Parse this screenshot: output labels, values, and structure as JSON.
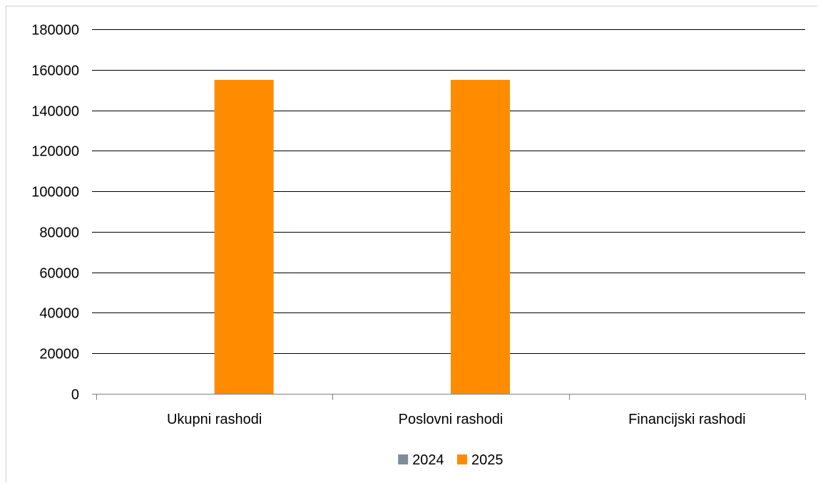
{
  "chart_data": {
    "type": "bar",
    "title": "",
    "xlabel": "",
    "ylabel": "",
    "categories": [
      "Ukupni rashodi",
      "Poslovni rashodi",
      "Financijski rashodi"
    ],
    "series": [
      {
        "name": "2024",
        "color": "#7f8c99",
        "values": [
          0,
          0,
          0
        ]
      },
      {
        "name": "2025",
        "color": "#ff8c00",
        "values": [
          155000,
          155000,
          0
        ]
      }
    ],
    "ylim": [
      0,
      180000
    ],
    "yticks": [
      0,
      20000,
      40000,
      60000,
      80000,
      100000,
      120000,
      140000,
      160000,
      180000
    ],
    "grid": true,
    "legend_position": "bottom"
  }
}
